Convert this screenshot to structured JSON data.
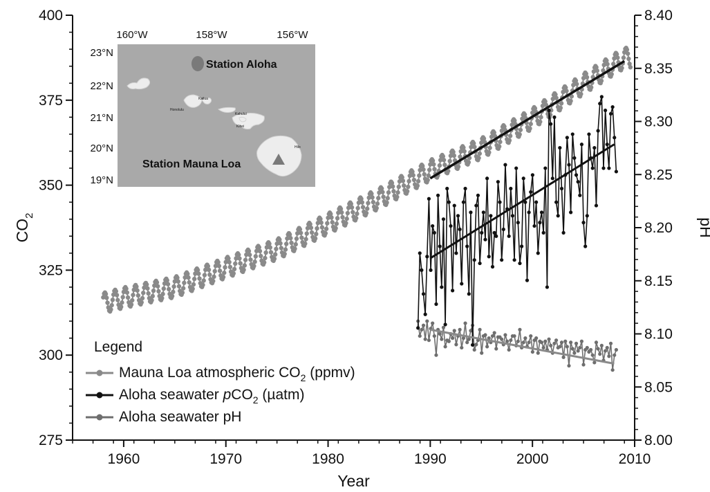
{
  "chart_data": {
    "type": "line",
    "x_axis": {
      "label": "Year",
      "range": [
        1955,
        2010
      ],
      "ticks": [
        "1960",
        "1970",
        "1980",
        "1990",
        "2000",
        "2010"
      ]
    },
    "y_left": {
      "label": "CO",
      "label_sub": "2",
      "range": [
        275,
        400
      ],
      "ticks": [
        "275",
        "300",
        "325",
        "350",
        "375",
        "400"
      ]
    },
    "y_right": {
      "label": "pH",
      "range": [
        8.0,
        8.4
      ],
      "ticks": [
        "8.00",
        "8.05",
        "8.10",
        "8.15",
        "8.20",
        "8.25",
        "8.30",
        "8.35",
        "8.40"
      ]
    },
    "grid": false,
    "legend": {
      "title": "Legend",
      "position": "bottom-left",
      "entries": [
        {
          "pre": "Mauna Loa atmospheric CO",
          "sub": "2",
          "post": " (ppmv)",
          "color": "#8a8a8a"
        },
        {
          "pre": "Aloha seawater ",
          "italic": "p",
          "mid": "CO",
          "sub": "2",
          "post": " (µatm)",
          "color": "#111111"
        },
        {
          "pre": "Aloha seawater pH",
          "color": "#6e6e6e"
        }
      ]
    },
    "series": [
      {
        "name": "Mauna Loa atmospheric CO2 (ppmv)",
        "axis": "left",
        "color": "#8a8a8a",
        "seasonal_amplitude": 3,
        "annual_means": [
          [
            1958,
            315.3
          ],
          [
            1960,
            316.9
          ],
          [
            1965,
            320.0
          ],
          [
            1970,
            325.7
          ],
          [
            1975,
            331.1
          ],
          [
            1980,
            338.7
          ],
          [
            1985,
            346.1
          ],
          [
            1990,
            354.4
          ],
          [
            1995,
            360.8
          ],
          [
            2000,
            369.6
          ],
          [
            2005,
            379.8
          ],
          [
            2008,
            385.6
          ],
          [
            2009,
            387.4
          ]
        ],
        "trend_line": [
          [
            1990,
            352
          ],
          [
            2009,
            386.5
          ]
        ],
        "trend_color": "#111111"
      },
      {
        "name": "Aloha seawater pCO2 (µatm)",
        "axis": "left",
        "color": "#111111",
        "x_start": 1988.8,
        "x_end": 2008.2,
        "values": [
          308,
          330,
          325,
          318,
          312,
          329,
          346,
          325,
          338,
          336,
          315,
          347,
          332,
          320,
          340,
          309,
          349,
          345,
          338,
          319,
          344,
          330,
          341,
          337,
          321,
          345,
          349,
          332,
          318,
          342,
          303,
          328,
          344,
          347,
          327,
          336,
          342,
          334,
          352,
          329,
          341,
          326,
          336,
          335,
          351,
          345,
          328,
          337,
          356,
          343,
          335,
          349,
          341,
          328,
          355,
          339,
          327,
          332,
          352,
          345,
          322,
          342,
          348,
          353,
          338,
          345,
          330,
          339,
          342,
          336,
          355,
          320,
          372,
          368,
          352,
          370,
          345,
          341,
          361,
          349,
          336,
          353,
          364,
          356,
          342,
          365,
          358,
          353,
          351,
          347,
          362,
          339,
          332,
          341,
          365,
          358,
          355,
          361,
          344,
          366,
          374,
          376,
          355,
          372,
          362,
          355,
          371,
          373,
          364,
          354
        ],
        "trend_line": [
          [
            1990,
            328.5
          ],
          [
            2008,
            362
          ]
        ],
        "trend_color": "#111111"
      },
      {
        "name": "Aloha seawater pH",
        "axis": "right",
        "color": "#6e6e6e",
        "x_start": 1988.8,
        "x_end": 2008.2,
        "values": [
          8.112,
          8.098,
          8.104,
          8.108,
          8.095,
          8.112,
          8.094,
          8.105,
          8.11,
          8.098,
          8.08,
          8.104,
          8.1,
          8.095,
          8.106,
          8.088,
          8.094,
          8.093,
          8.1,
          8.096,
          8.103,
          8.09,
          8.098,
          8.104,
          8.087,
          8.096,
          8.11,
          8.092,
          8.095,
          8.103,
          8.108,
          8.085,
          8.09,
          8.094,
          8.104,
          8.082,
          8.098,
          8.099,
          8.088,
          8.096,
          8.092,
          8.098,
          8.101,
          8.086,
          8.097,
          8.097,
          8.095,
          8.09,
          8.099,
          8.093,
          8.085,
          8.094,
          8.098,
          8.098,
          8.089,
          8.093,
          8.104,
          8.087,
          8.092,
          8.096,
          8.088,
          8.092,
          8.098,
          8.083,
          8.094,
          8.096,
          8.082,
          8.093,
          8.092,
          8.087,
          8.093,
          8.085,
          8.095,
          8.089,
          8.082,
          8.091,
          8.094,
          8.087,
          8.088,
          8.092,
          8.078,
          8.093,
          8.088,
          8.07,
          8.092,
          8.086,
          8.082,
          8.091,
          8.084,
          8.087,
          8.093,
          8.071,
          8.085,
          8.087,
          8.083,
          8.085,
          8.08,
          8.073,
          8.092,
          8.086,
          8.081,
          8.089,
          8.075,
          8.084,
          8.087,
          8.079,
          8.091,
          8.066,
          8.08,
          8.085
        ],
        "trend_line": [
          [
            1990,
            8.104
          ],
          [
            2008,
            8.072
          ]
        ],
        "trend_color": "#8a8a8a"
      }
    ]
  },
  "inset_map": {
    "lon_labels": [
      "160°W",
      "158°W",
      "156°W"
    ],
    "lat_labels": [
      "23°N",
      "22°N",
      "21°N",
      "20°N",
      "19°N"
    ],
    "station_aloha": "Station Aloha",
    "station_mauna_loa": "Station Mauna Loa",
    "small_labels": [
      "Honolulu",
      "Kailua",
      "Kahului",
      "Kihei",
      "Hilo"
    ],
    "station_aloha_color": "#7a7a7a",
    "station_mauna_loa_color": "#7a7a7a"
  }
}
